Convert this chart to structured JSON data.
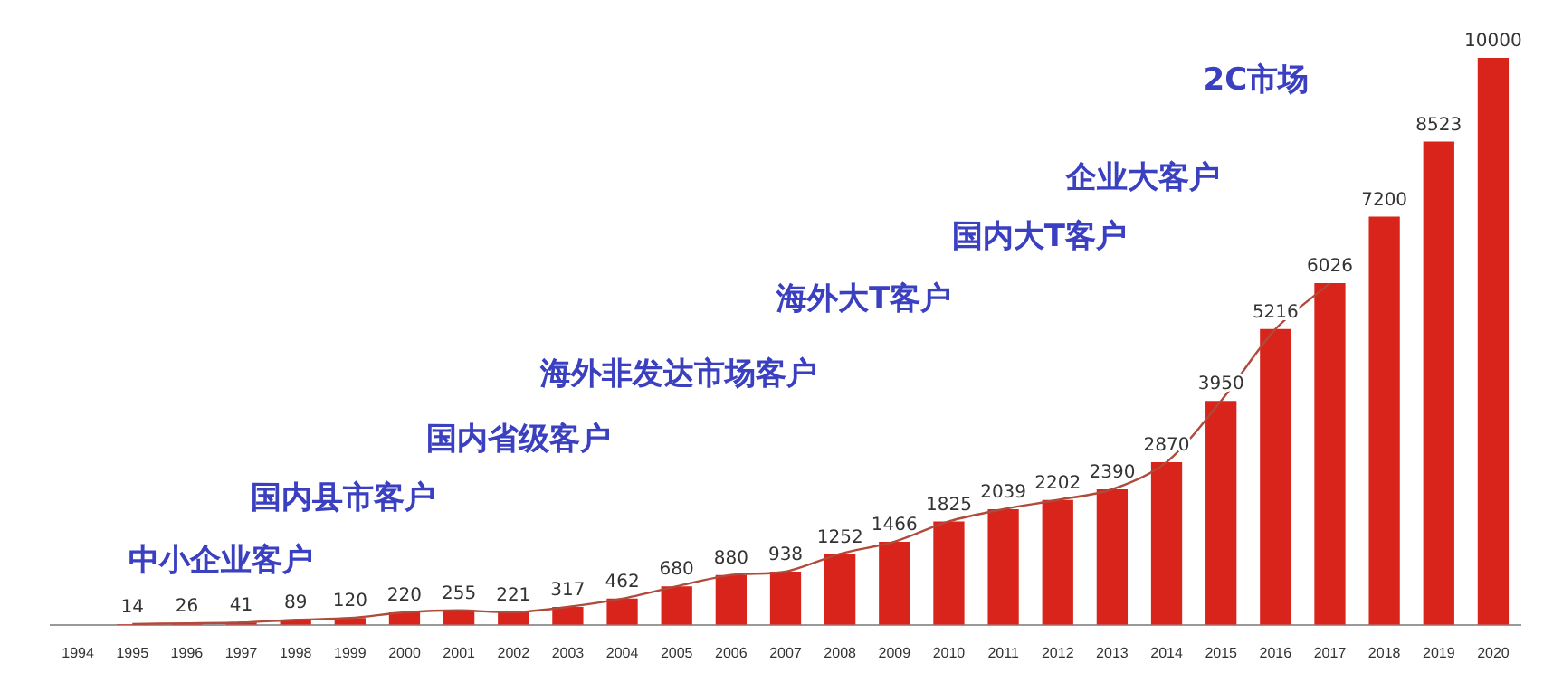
{
  "chart_data": {
    "type": "bar",
    "categories": [
      "1994",
      "1995",
      "1996",
      "1997",
      "1998",
      "1999",
      "2000",
      "2001",
      "2002",
      "2003",
      "2004",
      "2005",
      "2006",
      "2007",
      "2008",
      "2009",
      "2010",
      "2011",
      "2012",
      "2013",
      "2014",
      "2015",
      "2016",
      "2017",
      "2018",
      "2019",
      "2020"
    ],
    "series": [
      {
        "color": "#d8241a",
        "values": [
          null,
          14,
          26,
          41,
          89,
          120,
          220,
          255,
          221,
          317,
          462,
          680,
          880,
          938,
          1252,
          1466,
          1825,
          2039,
          2202,
          2390,
          2870,
          3950,
          5216,
          6026,
          7200,
          8523,
          10000
        ],
        "value_labels": [
          null,
          "14",
          "26",
          "41",
          "89",
          "120",
          "220",
          "255",
          "221",
          "317",
          "462",
          "680",
          "880",
          "938",
          "1252",
          "1466",
          "1825",
          "2039",
          "2202",
          "2390",
          "2870",
          "3950",
          "5216",
          "6026",
          "7200",
          "8523",
          "10000"
        ]
      },
      {
        "type": "line",
        "color": "#b04a3a",
        "values": [
          null,
          14,
          26,
          41,
          89,
          120,
          220,
          255,
          221,
          317,
          462,
          680,
          880,
          938,
          1252,
          1466,
          1825,
          2039,
          2202,
          2390,
          2870,
          3950,
          5216,
          6026,
          null,
          null,
          null
        ]
      }
    ],
    "marker": "none",
    "legend": false,
    "grid": false,
    "tick_labels": "x",
    "annotations": [
      "中小企业客户",
      "国内县市客户",
      "国内省级客户",
      "海外非发达市场客户",
      "海外大T客户",
      "国内大T客户",
      "企业大客户",
      "2C市场"
    ]
  }
}
